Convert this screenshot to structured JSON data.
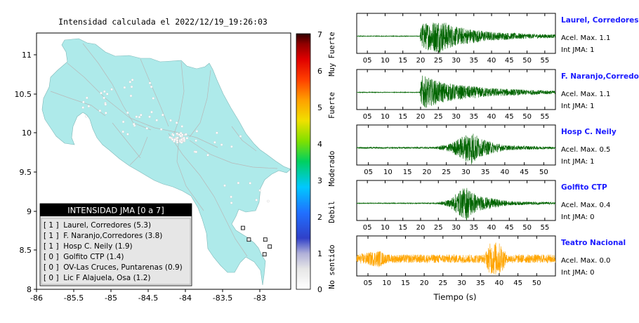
{
  "title": "Intensidad calculada el 2022/12/19_19:26:03",
  "map": {
    "x_ticks": [
      "-86",
      "-85.5",
      "-85",
      "-84.5",
      "-84",
      "-83.5",
      "-83"
    ],
    "y_ticks": [
      "11",
      "10.5",
      "10",
      "9.5",
      "9",
      "8.5",
      "8"
    ],
    "land_color": "#aeeaea",
    "ocean_color": "#ffffff"
  },
  "legend": {
    "title": "INTENSIDAD JMA [0 a 7]",
    "items": [
      "[ 1 ]  Laurel, Corredores (5.3)",
      "[ 1 ]  F. Naranjo,Corredores (3.8)",
      "[ 1 ]  Hosp C. Neily (1.9)",
      "[ 0 ]  Golfito CTP (1.4)",
      "[ 0 ]  OV-Las Cruces, Puntarenas (0.9)",
      "[ 0 ]  Lic F Alajuela, Osa (1.2)"
    ]
  },
  "colorbar": {
    "ticks": [
      "7",
      "6",
      "5",
      "4",
      "3",
      "2",
      "1",
      "0"
    ],
    "labels": [
      "Muy Fuerte",
      "Fuerte",
      "Moderado",
      "Debil",
      "No sentido"
    ]
  },
  "waveforms": {
    "xlabel": "Tiempo (s)",
    "ticks_long": [
      "05",
      "10",
      "15",
      "20",
      "25",
      "30",
      "35",
      "40",
      "45",
      "50",
      "55"
    ],
    "ticks_short": [
      "05",
      "10",
      "15",
      "20",
      "25",
      "30",
      "35",
      "40",
      "45",
      "50"
    ]
  },
  "chart_data": [
    {
      "type": "scatter",
      "title": "Intensidad calculada el 2022/12/19_19:26:03",
      "xlim": [
        -86,
        -82.6
      ],
      "ylim": [
        8,
        11.3
      ],
      "station_markers": [
        {
          "name": "Laurel, Corredores",
          "x": -82.95,
          "y": 8.45
        },
        {
          "name": "F. Naranjo,Corredores",
          "x": -82.88,
          "y": 8.55
        },
        {
          "name": "Hosp C. Neily",
          "x": -82.94,
          "y": 8.64
        },
        {
          "name": "Golfito CTP",
          "x": -83.16,
          "y": 8.64
        },
        {
          "name": "Lic F Alajuela, Osa",
          "x": -83.24,
          "y": 8.79
        }
      ]
    },
    {
      "type": "line",
      "station": "Laurel, Corredores",
      "accel_label": "Acel. Max. 1.1",
      "jma_label": "Int JMA: 1",
      "color": "#006400",
      "xlim": [
        2,
        58
      ],
      "onset": 20,
      "peak_time": 25,
      "envelope": [
        [
          2,
          0.02
        ],
        [
          19.8,
          0.02
        ],
        [
          20.2,
          0.75
        ],
        [
          23,
          0.85
        ],
        [
          25,
          1.0
        ],
        [
          30,
          0.55
        ],
        [
          40,
          0.25
        ],
        [
          50,
          0.15
        ],
        [
          58,
          0.1
        ]
      ]
    },
    {
      "type": "line",
      "station": "F. Naranjo,Corredores",
      "accel_label": "Acel. Max. 1.1",
      "jma_label": "Int JMA: 1",
      "color": "#006400",
      "xlim": [
        2,
        58
      ],
      "onset": 20,
      "peak_time": 20.3,
      "envelope": [
        [
          2,
          0.02
        ],
        [
          19.8,
          0.02
        ],
        [
          20.3,
          1.0
        ],
        [
          25,
          0.65
        ],
        [
          30,
          0.45
        ],
        [
          40,
          0.25
        ],
        [
          50,
          0.15
        ],
        [
          58,
          0.1
        ]
      ]
    },
    {
      "type": "line",
      "station": "Hosp C. Neily",
      "accel_label": "Acel. Max. 0.5",
      "jma_label": "Int JMA: 1",
      "color": "#006400",
      "xlim": [
        2,
        53
      ],
      "onset": 22,
      "peak_time": 31,
      "envelope": [
        [
          2,
          0.04
        ],
        [
          22,
          0.05
        ],
        [
          26,
          0.25
        ],
        [
          30,
          0.8
        ],
        [
          31.5,
          1.0
        ],
        [
          34,
          0.5
        ],
        [
          40,
          0.15
        ],
        [
          53,
          0.06
        ]
      ]
    },
    {
      "type": "line",
      "station": "Golfito CTP",
      "accel_label": "Acel. Max. 0.4",
      "jma_label": "Int JMA: 0",
      "color": "#006400",
      "xlim": [
        2,
        58
      ],
      "onset": 24,
      "peak_time": 33,
      "envelope": [
        [
          2,
          0.02
        ],
        [
          24,
          0.03
        ],
        [
          28,
          0.2
        ],
        [
          31,
          0.75
        ],
        [
          33,
          1.0
        ],
        [
          36,
          0.45
        ],
        [
          45,
          0.12
        ],
        [
          58,
          0.06
        ]
      ]
    },
    {
      "type": "line",
      "station": "Teatro Nacional",
      "accel_label": "Acel. Max. 0.0",
      "jma_label": "Int JMA: 0",
      "color": "#ffa500",
      "xlim": [
        2,
        55
      ],
      "peak_time": 39,
      "envelope": [
        [
          2,
          0.25
        ],
        [
          8,
          0.5
        ],
        [
          10,
          0.25
        ],
        [
          36,
          0.25
        ],
        [
          37.5,
          0.9
        ],
        [
          39,
          1.0
        ],
        [
          40.5,
          0.9
        ],
        [
          42,
          0.25
        ],
        [
          55,
          0.25
        ]
      ]
    }
  ]
}
